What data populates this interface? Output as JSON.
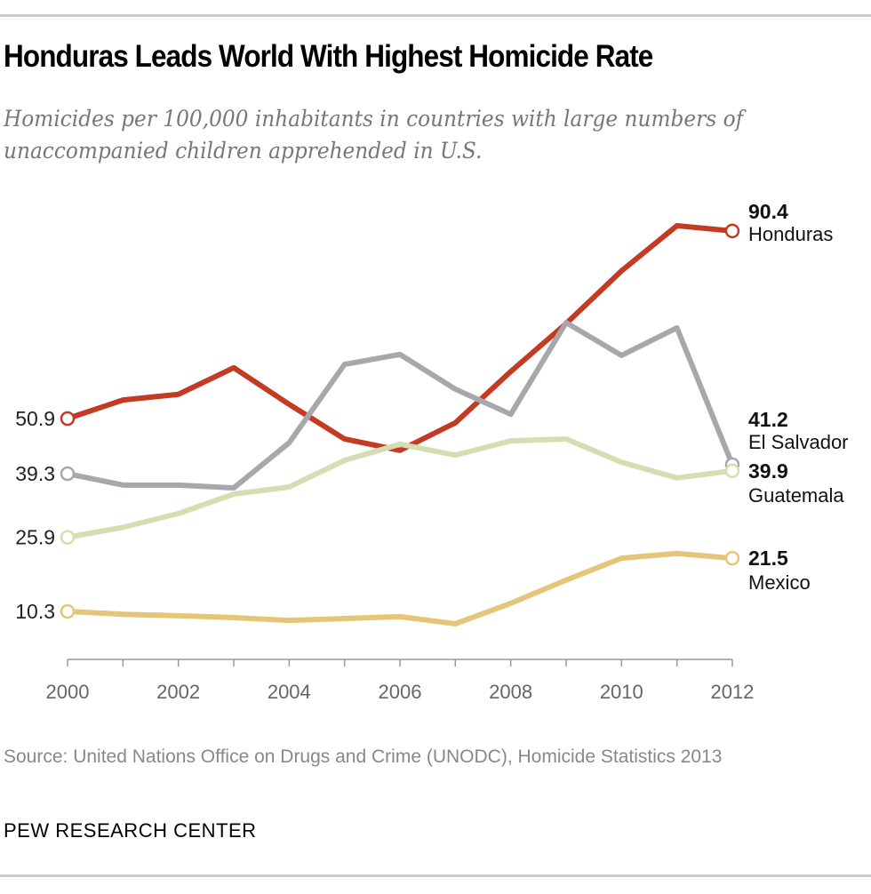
{
  "chart_data": {
    "type": "line",
    "title": "Honduras Leads World With Highest Homicide Rate",
    "subtitle": "Homicides per 100,000 inhabitants in countries with large numbers of unaccompanied children apprehended in U.S.",
    "xlabel": "",
    "ylabel": "Homicides per 100,000 inhabitants",
    "x": [
      2000,
      2001,
      2002,
      2003,
      2004,
      2005,
      2006,
      2007,
      2008,
      2009,
      2010,
      2011,
      2012
    ],
    "x_ticks": [
      "2000",
      "2002",
      "2004",
      "2006",
      "2008",
      "2010",
      "2012"
    ],
    "ylim": [
      5,
      95
    ],
    "grid": false,
    "series": [
      {
        "name": "Honduras",
        "color": "#c43a23",
        "start_label": "50.9",
        "end_label": "90.4",
        "values": [
          50.9,
          54.8,
          56.0,
          61.6,
          53.9,
          46.6,
          44.2,
          50.0,
          60.8,
          70.9,
          82.0,
          91.5,
          90.4
        ]
      },
      {
        "name": "El Salvador",
        "color": "#a6a8ab",
        "start_label": "39.3",
        "end_label": "41.2",
        "values": [
          39.3,
          36.9,
          36.9,
          36.3,
          45.8,
          62.3,
          64.4,
          57.1,
          51.8,
          71.1,
          64.2,
          70.0,
          41.2
        ]
      },
      {
        "name": "Guatemala",
        "color": "#d3dfb0",
        "start_label": "25.9",
        "end_label": "39.9",
        "values": [
          25.9,
          28.0,
          30.9,
          35.0,
          36.5,
          42.1,
          45.5,
          43.2,
          46.2,
          46.6,
          41.7,
          38.4,
          39.9
        ]
      },
      {
        "name": "Mexico",
        "color": "#e6c57a",
        "start_label": "10.3",
        "end_label": "21.5",
        "values": [
          10.3,
          9.7,
          9.4,
          9.0,
          8.4,
          8.8,
          9.2,
          7.7,
          12.0,
          16.9,
          21.5,
          22.5,
          21.5
        ]
      }
    ]
  },
  "source": "Source: United Nations Office on Drugs and Crime (UNODC), Homicide Statistics 2013",
  "footer": "PEW RESEARCH CENTER"
}
